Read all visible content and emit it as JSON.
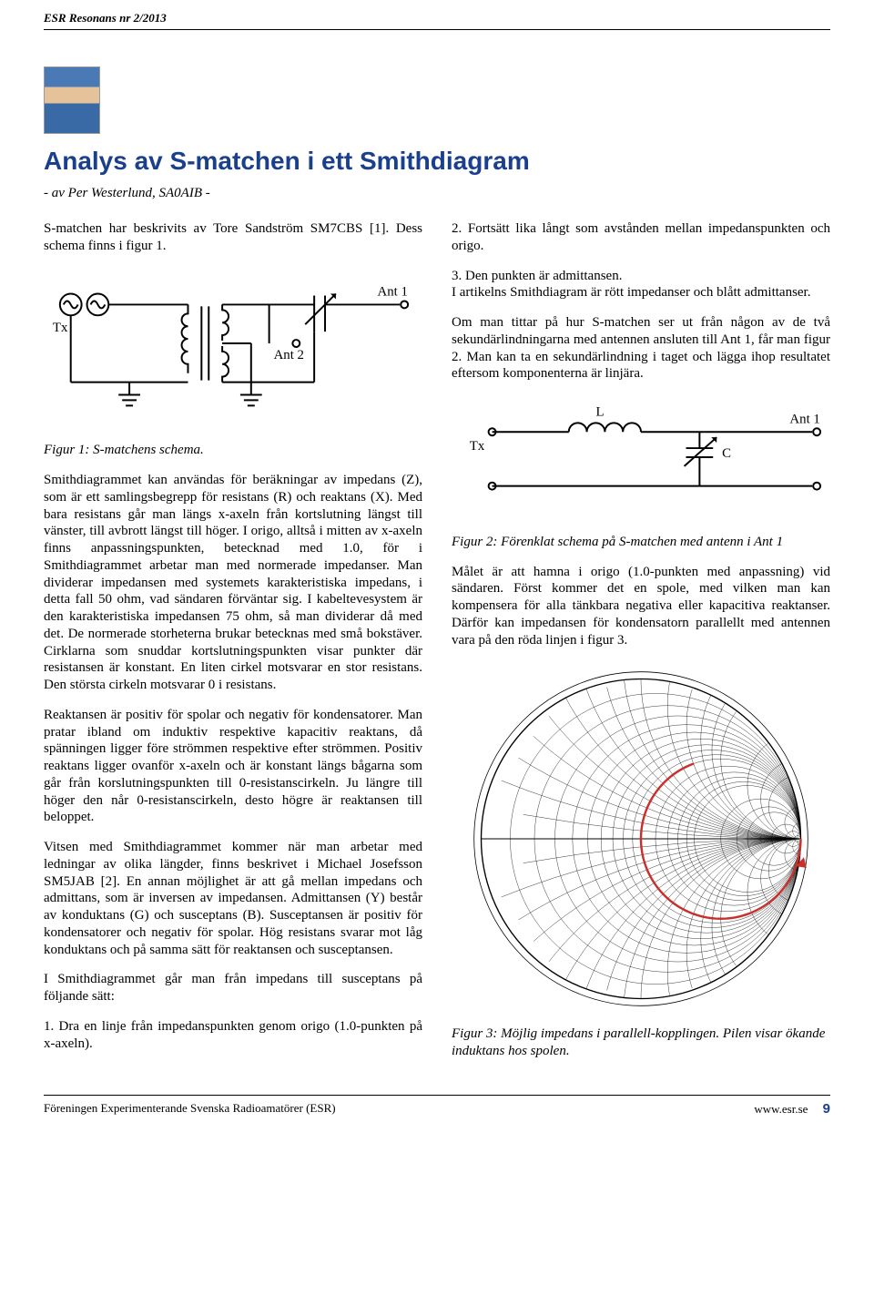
{
  "header": {
    "running": "ESR Resonans nr 2/2013"
  },
  "title": "Analys av S-matchen i ett Smithdiagram",
  "byline": "- av Per Westerlund, SA0AIB -",
  "intro": "S-matchen har beskrivits av Tore Sandström SM7CBS [1]. Dess schema finns i figur 1.",
  "fig1": {
    "caption": "Figur 1: S-matchens schema.",
    "labels": {
      "tx": "Tx",
      "ant1": "Ant 1",
      "ant2": "Ant 2"
    },
    "colors": {
      "stroke": "#000000",
      "bg": "#ffffff"
    }
  },
  "left": {
    "p1": "Smithdiagrammet kan användas för beräkningar av impedans (Z), som är ett samlingsbegrepp för resistans (R) och reaktans (X). Med bara resistans går man längs x-axeln från kortslutning längst till vänster, till avbrott längst till höger. I origo, alltså i mitten av x-axeln finns anpassningspunkten, betecknad med 1.0, för i Smithdiagrammet arbetar man med normerade impedanser. Man dividerar impedansen med systemets karakteristiska impedans, i detta fall 50 ohm, vad sändaren förväntar sig. I kabeltevesystem är den karakteristiska impedansen 75 ohm, så man dividerar då med det. De normerade storheterna brukar betecknas med små bokstäver. Cirklarna som snuddar kortslutningspunkten visar punkter där resistansen är konstant. En liten cirkel motsvarar en stor resistans. Den största cirkeln motsvarar 0 i resistans.",
    "p2": "Reaktansen är positiv för spolar och negativ för kondensatorer. Man pratar ibland om induktiv respektive kapacitiv reaktans, då spänningen ligger före strömmen respektive efter strömmen. Positiv reaktans ligger ovanför x-axeln och är konstant längs bågarna som går från korslutningspunkten till 0-resistanscirkeln. Ju längre till höger den når 0-resistanscirkeln, desto högre är reaktansen till beloppet.",
    "p3": "Vitsen med Smithdiagrammet kommer när man arbetar med ledningar av olika längder, finns beskrivet i Michael Josefsson SM5JAB [2]. En annan möjlighet är att gå mellan impedans och admittans, som är inversen av impedansen. Admittansen (Y) består av konduktans (G) och susceptans (B). Susceptansen är positiv för kondensatorer och negativ för spolar. Hög resistans svarar mot låg konduktans och på samma sätt för reaktansen och susceptansen.",
    "p4": "I Smithdiagrammet går man från impedans till susceptans på följande sätt:",
    "p5": "1. Dra en linje från impedanspunkten genom origo (1.0-punkten på x-axeln)."
  },
  "right": {
    "p1": "2. Fortsätt lika långt som avstånden mellan impedanspunkten och origo.",
    "p2": "3. Den punkten är admittansen.\nI artikelns Smithdiagram är rött impedanser och blått admittanser.",
    "p3": "Om man tittar på hur S-matchen ser ut från någon av de två sekundärlindningarna med antennen ansluten till Ant 1, får man figur 2. Man kan ta en sekundärlindning i taget och lägga ihop resultatet eftersom komponenterna är linjära.",
    "p4": "Målet är att hamna i origo (1.0-punkten med anpassning) vid sändaren. Först kommer det en spole, med vilken man kan kompensera för alla tänkbara negativa eller kapacitiva reaktanser. Därför kan impedansen för kondensatorn parallellt med antennen vara på den röda linjen i figur 3."
  },
  "fig2": {
    "caption": "Figur 2: Förenklat schema på S-matchen med antenn i Ant 1",
    "labels": {
      "tx": "Tx",
      "L": "L",
      "C": "C",
      "ant1": "Ant 1"
    },
    "colors": {
      "stroke": "#000000",
      "bg": "#ffffff"
    }
  },
  "fig3": {
    "caption": "Figur 3: Möjlig impedans i parallell-kopplingen. Pilen visar ökande induktans hos spolen.",
    "colors": {
      "outline": "#000000",
      "grid": "#000000",
      "impedance_arc": "#c9302c",
      "bg": "#ffffff"
    },
    "chart": {
      "type": "smith",
      "radius": 180,
      "resistance_circles": [
        0.1,
        0.2,
        0.3,
        0.4,
        0.5,
        0.6,
        0.7,
        0.8,
        0.9,
        1.0,
        1.2,
        1.4,
        1.6,
        1.8,
        2.0,
        3.0,
        4.0,
        5.0,
        10.0,
        20.0,
        50.0
      ],
      "reactance_arcs": [
        0.1,
        0.2,
        0.3,
        0.4,
        0.5,
        0.6,
        0.7,
        0.8,
        0.9,
        1.0,
        1.2,
        1.4,
        1.6,
        1.8,
        2.0,
        3.0,
        4.0,
        5.0,
        10.0,
        20.0,
        50.0
      ]
    }
  },
  "footer": {
    "org": "Föreningen Experimenterande Svenska Radioamatörer (ESR)",
    "url": "www.esr.se",
    "page": "9"
  },
  "colors": {
    "title": "#1a3f8c",
    "text": "#000000",
    "background": "#ffffff"
  }
}
